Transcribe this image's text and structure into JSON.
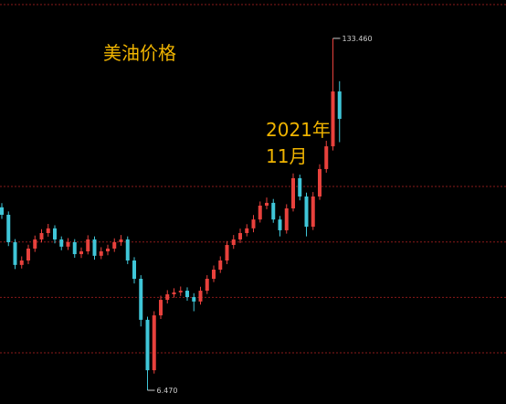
{
  "chart_data": {
    "type": "candlestick",
    "title": "美油价格",
    "annotation": [
      "2021年",
      "11月"
    ],
    "open": [
      72.5,
      69.8,
      59.9,
      51.7,
      53.3,
      57.6,
      60.9,
      63.2,
      64.9,
      60.9,
      58.3,
      59.9,
      55.6,
      56.6,
      60.9,
      55.0,
      56.6,
      57.6,
      59.9,
      60.9,
      53.3,
      46.7,
      31.9,
      13.7,
      33.5,
      39.1,
      41.1,
      41.8,
      42.4,
      40.1,
      38.5,
      42.4,
      46.7,
      50.0,
      53.3,
      58.9,
      60.9,
      63.2,
      64.9,
      68.1,
      73.1,
      74.1,
      68.1,
      64.2,
      72.1,
      83.0,
      76.4,
      65.5,
      76.4,
      86.3,
      94.5,
      114.3
    ],
    "high": [
      74.0,
      71.0,
      61.0,
      54.8,
      59.0,
      62.3,
      64.6,
      66.5,
      66.0,
      62.0,
      61.4,
      61.0,
      58.0,
      62.4,
      62.0,
      58.1,
      59.0,
      61.3,
      62.5,
      62.0,
      54.5,
      48.0,
      33.0,
      35.0,
      40.6,
      42.6,
      43.3,
      43.9,
      43.6,
      41.5,
      43.8,
      48.0,
      51.5,
      54.8,
      60.3,
      62.5,
      64.8,
      66.4,
      69.7,
      74.6,
      76.0,
      75.5,
      69.4,
      73.6,
      84.7,
      84.3,
      77.8,
      78.0,
      88.0,
      96.5,
      133.46,
      118.0
    ],
    "low": [
      68.3,
      58.5,
      50.2,
      50.4,
      52.0,
      56.4,
      59.8,
      61.9,
      59.5,
      57.0,
      57.1,
      54.3,
      54.2,
      55.5,
      53.6,
      53.8,
      55.2,
      56.4,
      58.6,
      52.0,
      45.0,
      29.5,
      6.47,
      12.5,
      32.2,
      37.8,
      39.9,
      40.5,
      38.8,
      35.0,
      37.4,
      41.2,
      45.5,
      48.8,
      52.0,
      57.5,
      59.6,
      62.0,
      63.5,
      67.0,
      71.8,
      66.9,
      62.0,
      63.0,
      71.0,
      75.0,
      62.0,
      64.3,
      75.2,
      85.0,
      93.0,
      96.0
    ],
    "close": [
      69.8,
      59.9,
      51.7,
      53.3,
      57.6,
      60.9,
      63.2,
      64.9,
      60.9,
      58.3,
      59.9,
      55.6,
      56.6,
      60.9,
      55.0,
      56.6,
      57.6,
      59.9,
      60.9,
      53.3,
      46.7,
      31.9,
      13.7,
      33.5,
      39.1,
      41.1,
      41.8,
      42.4,
      40.1,
      38.5,
      42.4,
      46.7,
      50.0,
      53.3,
      58.9,
      60.9,
      63.2,
      64.9,
      68.1,
      73.1,
      74.1,
      68.1,
      64.2,
      72.1,
      83.0,
      76.4,
      65.5,
      76.4,
      86.3,
      94.5,
      114.3,
      104.4
    ],
    "extremes": [
      {
        "value": 133.46,
        "label": "133.460"
      },
      {
        "value": 6.47,
        "label": "6.470"
      }
    ],
    "up_color": "#e8413c",
    "down_color": "#3fc6d8",
    "text_color": "#f0b400",
    "ylim": [
      1.52,
      147.3
    ],
    "grid_lines": [
      20,
      40,
      60,
      80
    ],
    "grid_color": "#8a1a1a"
  }
}
